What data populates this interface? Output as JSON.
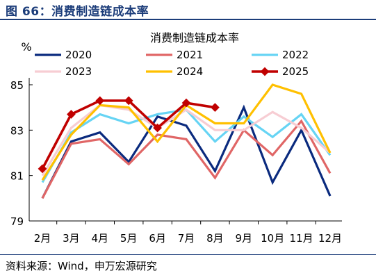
{
  "figure": {
    "label": "图 66：消费制造链成本率",
    "source": "资料来源：Wind，申万宏源研究"
  },
  "colors": {
    "title": "#1c3d7a"
  },
  "chart_data": {
    "type": "line",
    "title": "消费制造链成本率",
    "ylabel": "%",
    "xlabel": "",
    "categories": [
      "2月",
      "3月",
      "4月",
      "5月",
      "6月",
      "7月",
      "8月",
      "9月",
      "10月",
      "11月",
      "12月"
    ],
    "ylim": [
      79,
      85
    ],
    "yticks": [
      "79",
      "81",
      "83",
      "85"
    ],
    "grid": false,
    "legend": "top",
    "series": [
      {
        "name": "2020",
        "color": "#0a2a7e",
        "width": 3.2,
        "marker": false,
        "values": [
          80.0,
          82.5,
          82.9,
          81.6,
          83.6,
          83.2,
          81.2,
          84.0,
          80.7,
          83.0,
          80.1
        ]
      },
      {
        "name": "2021",
        "color": "#e06666",
        "width": 3.2,
        "marker": false,
        "values": [
          80.0,
          82.4,
          82.6,
          81.5,
          82.8,
          82.6,
          80.9,
          83.0,
          81.9,
          83.4,
          81.1
        ]
      },
      {
        "name": "2022",
        "color": "#66d4f4",
        "width": 3.2,
        "marker": false,
        "values": [
          80.7,
          82.9,
          83.7,
          83.3,
          83.7,
          83.9,
          82.5,
          83.6,
          82.7,
          83.7,
          81.9
        ]
      },
      {
        "name": "2023",
        "color": "#f7cdd3",
        "width": 3.2,
        "marker": false,
        "values": [
          81.0,
          83.1,
          84.1,
          83.9,
          83.1,
          83.9,
          83.0,
          83.0,
          83.8,
          83.1,
          82.0
        ]
      },
      {
        "name": "2024",
        "color": "#ffc000",
        "width": 3.2,
        "marker": false,
        "values": [
          80.8,
          82.8,
          84.1,
          84.0,
          82.5,
          84.1,
          83.3,
          83.3,
          85.0,
          84.6,
          82.0
        ]
      },
      {
        "name": "2025",
        "color": "#c00000",
        "width": 3.6,
        "marker": true,
        "values": [
          81.3,
          83.7,
          84.3,
          84.3,
          83.1,
          84.2,
          84.0,
          null,
          null,
          null,
          null
        ]
      }
    ]
  }
}
